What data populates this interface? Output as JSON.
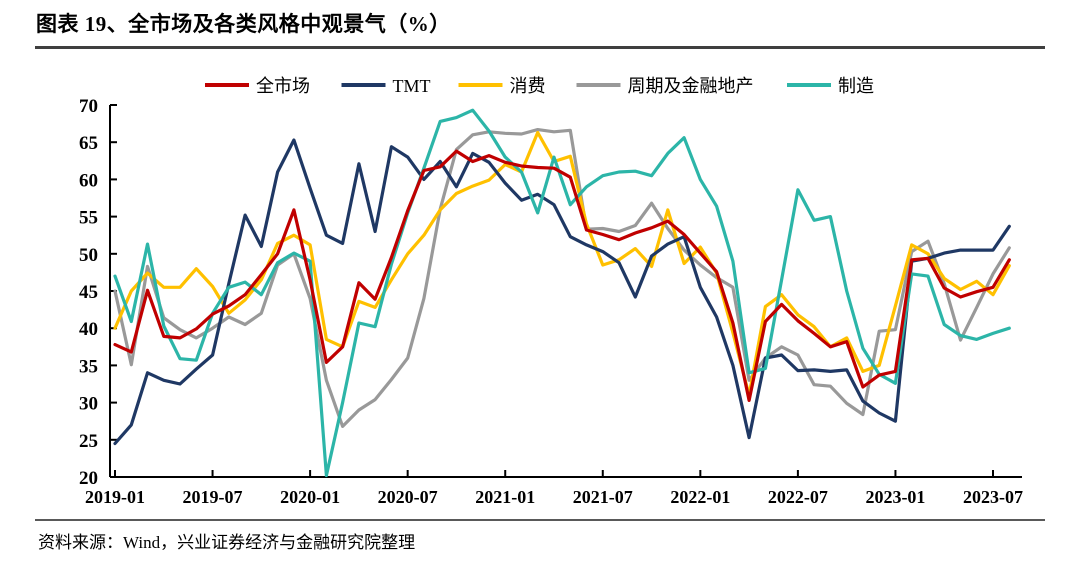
{
  "header": {
    "title": "图表 19、全市场及各类风格中观景气（%）"
  },
  "footer": {
    "source_label": "资料来源：Wind，兴业证券经济与金融研究院整理"
  },
  "chart_data": {
    "type": "line",
    "title": "全市场及各类风格中观景气（%）",
    "xlabel": "",
    "ylabel": "",
    "ylim": [
      20,
      70
    ],
    "y_ticks": [
      20,
      25,
      30,
      35,
      40,
      45,
      50,
      55,
      60,
      65,
      70
    ],
    "grid": false,
    "legend_position": "top",
    "x": [
      "2019-01",
      "2019-02",
      "2019-03",
      "2019-04",
      "2019-05",
      "2019-06",
      "2019-07",
      "2019-08",
      "2019-09",
      "2019-10",
      "2019-11",
      "2019-12",
      "2020-01",
      "2020-02",
      "2020-03",
      "2020-04",
      "2020-05",
      "2020-06",
      "2020-07",
      "2020-08",
      "2020-09",
      "2020-10",
      "2020-11",
      "2020-12",
      "2021-01",
      "2021-02",
      "2021-03",
      "2021-04",
      "2021-05",
      "2021-06",
      "2021-07",
      "2021-08",
      "2021-09",
      "2021-10",
      "2021-11",
      "2021-12",
      "2022-01",
      "2022-02",
      "2022-03",
      "2022-04",
      "2022-05",
      "2022-06",
      "2022-07",
      "2022-08",
      "2022-09",
      "2022-10",
      "2022-11",
      "2022-12",
      "2023-01",
      "2023-02",
      "2023-03",
      "2023-04",
      "2023-05",
      "2023-06",
      "2023-07",
      "2023-08"
    ],
    "x_tick_labels": [
      "2019-01",
      "2019-07",
      "2020-01",
      "2020-07",
      "2021-01",
      "2021-07",
      "2022-01",
      "2022-07",
      "2023-01",
      "2023-07"
    ],
    "x_tick_indices": [
      0,
      6,
      12,
      18,
      24,
      30,
      36,
      42,
      48,
      54
    ],
    "series": [
      {
        "name": "全市场",
        "color": "#C00000",
        "values": [
          37.8,
          36.8,
          45.1,
          38.9,
          38.7,
          39.9,
          41.9,
          43,
          44.5,
          47.2,
          50,
          55.9,
          46.5,
          35.4,
          37.5,
          46.1,
          43.9,
          49.5,
          55.8,
          61.2,
          61.7,
          63.8,
          62.4,
          63.2,
          62.3,
          61.8,
          61.6,
          61.5,
          60.3,
          53.2,
          52.6,
          51.9,
          52.8,
          53.5,
          54.4,
          52.6,
          50.1,
          47.6,
          40.7,
          30.3,
          40.9,
          43.2,
          41,
          39.3,
          37.5,
          38.2,
          32.1,
          33.7,
          34.2,
          49.2,
          49.4,
          45.4,
          44.2,
          44.9,
          45.5,
          49.2
        ]
      },
      {
        "name": "TMT",
        "color": "#1F3864",
        "values": [
          24.5,
          27,
          34,
          33,
          32.5,
          34.5,
          36.4,
          46,
          55.2,
          51,
          61,
          65.3,
          58.8,
          52.5,
          51.4,
          62.1,
          53,
          64.4,
          63,
          60,
          62.4,
          59,
          63.5,
          62.3,
          59.5,
          57.2,
          58,
          56.6,
          52.3,
          51.2,
          50.3,
          48.8,
          44.2,
          49.7,
          51.3,
          52.3,
          45.5,
          41.5,
          35,
          25.3,
          36,
          36.4,
          34.3,
          34.4,
          34.2,
          34.4,
          30.2,
          28.6,
          27.5,
          49,
          49.4,
          50.1,
          50.5,
          50.5,
          50.5,
          53.7
        ]
      },
      {
        "name": "消费",
        "color": "#FFC000",
        "values": [
          40,
          45,
          47.4,
          45.5,
          45.5,
          48,
          45.6,
          42,
          43.8,
          46.5,
          51.4,
          52.5,
          51.2,
          38.5,
          37.5,
          43.6,
          42.8,
          46.5,
          50,
          52.5,
          55.9,
          58.1,
          59.1,
          59.9,
          62,
          61,
          66.3,
          62.4,
          63.1,
          54,
          48.5,
          49.2,
          50.7,
          48.3,
          55.9,
          48.7,
          50.9,
          47.4,
          39.4,
          31,
          42.9,
          44.5,
          41.8,
          40.2,
          37.5,
          38.7,
          34.2,
          35,
          43,
          51.2,
          50,
          46.7,
          45.2,
          46.3,
          44.5,
          48.4
        ]
      },
      {
        "name": "周期及金融地产",
        "color": "#999999",
        "values": [
          45,
          35.1,
          48.3,
          41.4,
          39.8,
          38.7,
          40,
          41.5,
          40.5,
          42,
          48.5,
          50,
          44,
          33,
          26.8,
          29,
          30.4,
          33.1,
          36,
          44,
          56,
          64,
          66,
          66.4,
          66.2,
          66.1,
          66.7,
          66.4,
          66.6,
          53.3,
          53.4,
          53,
          53.8,
          56.8,
          53.4,
          50.5,
          48.5,
          46.8,
          45.5,
          33,
          36,
          37.5,
          36.4,
          32.4,
          32.2,
          29.9,
          28.4,
          39.6,
          39.8,
          50.3,
          51.7,
          46,
          38.4,
          42.8,
          47.3,
          50.8
        ]
      },
      {
        "name": "制造",
        "color": "#2CB5A8",
        "values": [
          47,
          40.9,
          51.3,
          40.3,
          35.9,
          35.7,
          42,
          45.5,
          46.2,
          44.5,
          48.8,
          50.1,
          49,
          20.2,
          30,
          40.7,
          40.2,
          48.6,
          55.5,
          61.5,
          67.8,
          68.3,
          69.3,
          66.5,
          63,
          61,
          55.5,
          63,
          56.6,
          59,
          60.5,
          61,
          61.1,
          60.5,
          63.5,
          65.6,
          60,
          56.4,
          49,
          34,
          34.6,
          46.5,
          58.6,
          54.5,
          55,
          45,
          37.3,
          33.8,
          32.6,
          47.3,
          47,
          40.5,
          39,
          38.5,
          39.3,
          40
        ]
      }
    ]
  }
}
